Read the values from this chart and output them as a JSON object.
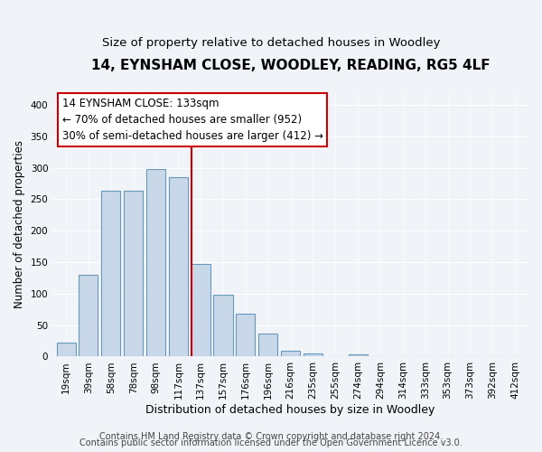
{
  "title": "14, EYNSHAM CLOSE, WOODLEY, READING, RG5 4LF",
  "subtitle": "Size of property relative to detached houses in Woodley",
  "xlabel": "Distribution of detached houses by size in Woodley",
  "ylabel": "Number of detached properties",
  "bar_labels": [
    "19sqm",
    "39sqm",
    "58sqm",
    "78sqm",
    "98sqm",
    "117sqm",
    "137sqm",
    "157sqm",
    "176sqm",
    "196sqm",
    "216sqm",
    "235sqm",
    "255sqm",
    "274sqm",
    "294sqm",
    "314sqm",
    "333sqm",
    "353sqm",
    "373sqm",
    "392sqm",
    "412sqm"
  ],
  "bar_heights": [
    22,
    130,
    263,
    263,
    298,
    285,
    147,
    98,
    68,
    37,
    9,
    5,
    0,
    3,
    0,
    0,
    0,
    0,
    0,
    0,
    0
  ],
  "bar_color": "#c8d8e8",
  "bar_edge_color": "#6699bb",
  "marker_index": 6,
  "marker_label": "14 EYNSHAM CLOSE: 133sqm",
  "marker_color": "#cc0000",
  "annotation_line1": "← 70% of detached houses are smaller (952)",
  "annotation_line2": "30% of semi-detached houses are larger (412) →",
  "annotation_box_color": "#ffffff",
  "annotation_box_edge": "#cc0000",
  "ylim": [
    0,
    420
  ],
  "yticks": [
    0,
    50,
    100,
    150,
    200,
    250,
    300,
    350,
    400
  ],
  "footer1": "Contains HM Land Registry data © Crown copyright and database right 2024.",
  "footer2": "Contains public sector information licensed under the Open Government Licence v3.0.",
  "background_color": "#f0f4f8",
  "plot_background": "#f0f4f8",
  "title_fontsize": 11,
  "subtitle_fontsize": 9.5,
  "xlabel_fontsize": 9,
  "ylabel_fontsize": 8.5,
  "tick_fontsize": 7.5,
  "annotation_fontsize": 8.5,
  "footer_fontsize": 7
}
